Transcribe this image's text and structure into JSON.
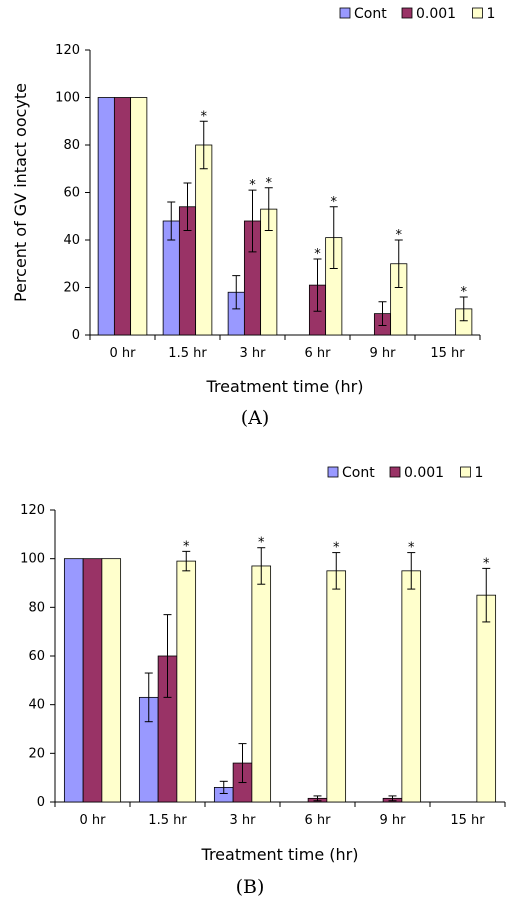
{
  "colors": {
    "Cont": "#9999ff",
    "0.001": "#993366",
    "1": "#ffffcc"
  },
  "chart_data": [
    {
      "type": "bar",
      "panel_label": "(A)",
      "xlabel": "Treatment time (hr)",
      "ylabel": "Percent of GV intact oocyte",
      "ylim": [
        0,
        120
      ],
      "yticks": [
        "0",
        "20",
        "40",
        "60",
        "80",
        "100",
        "120"
      ],
      "categories": [
        "0 hr",
        "1.5 hr",
        "3 hr",
        "6 hr",
        "9 hr",
        "15 hr"
      ],
      "legend_position": "top-right",
      "series": [
        {
          "name": "Cont",
          "values": [
            100,
            48,
            18,
            0,
            0,
            0
          ],
          "errors": [
            0,
            8,
            7,
            0,
            0,
            0
          ],
          "stars": [
            false,
            false,
            false,
            false,
            false,
            false
          ]
        },
        {
          "name": "0.001",
          "values": [
            100,
            54,
            48,
            21,
            9,
            0
          ],
          "errors": [
            0,
            10,
            13,
            11,
            5,
            0
          ],
          "stars": [
            false,
            false,
            true,
            true,
            false,
            false
          ]
        },
        {
          "name": "1",
          "values": [
            100,
            80,
            53,
            41,
            30,
            11
          ],
          "errors": [
            0,
            10,
            9,
            13,
            10,
            5
          ],
          "stars": [
            false,
            true,
            true,
            true,
            true,
            true
          ]
        }
      ],
      "star_label": "*"
    },
    {
      "type": "bar",
      "panel_label": "(B)",
      "xlabel": "Treatment time (hr)",
      "ylabel": "",
      "ylim": [
        0,
        120
      ],
      "yticks": [
        "0",
        "20",
        "40",
        "60",
        "80",
        "100",
        "120"
      ],
      "categories": [
        "0 hr",
        "1.5 hr",
        "3 hr",
        "6 hr",
        "9 hr",
        "15 hr"
      ],
      "legend_position": "top-right",
      "series": [
        {
          "name": "Cont",
          "values": [
            100,
            43,
            6,
            0,
            0,
            0
          ],
          "errors": [
            0,
            10,
            2.5,
            0,
            0,
            0
          ],
          "stars": [
            false,
            false,
            false,
            false,
            false,
            false
          ]
        },
        {
          "name": "0.001",
          "values": [
            100,
            60,
            16,
            1.5,
            1.5,
            0
          ],
          "errors": [
            0,
            17,
            8,
            1,
            1,
            0
          ],
          "stars": [
            false,
            false,
            false,
            false,
            false,
            false
          ]
        },
        {
          "name": "1",
          "values": [
            100,
            99,
            97,
            95,
            95,
            85
          ],
          "errors": [
            0,
            4,
            7.5,
            7.5,
            7.5,
            11
          ],
          "stars": [
            false,
            true,
            true,
            true,
            true,
            true
          ]
        }
      ],
      "star_label": "*"
    }
  ]
}
